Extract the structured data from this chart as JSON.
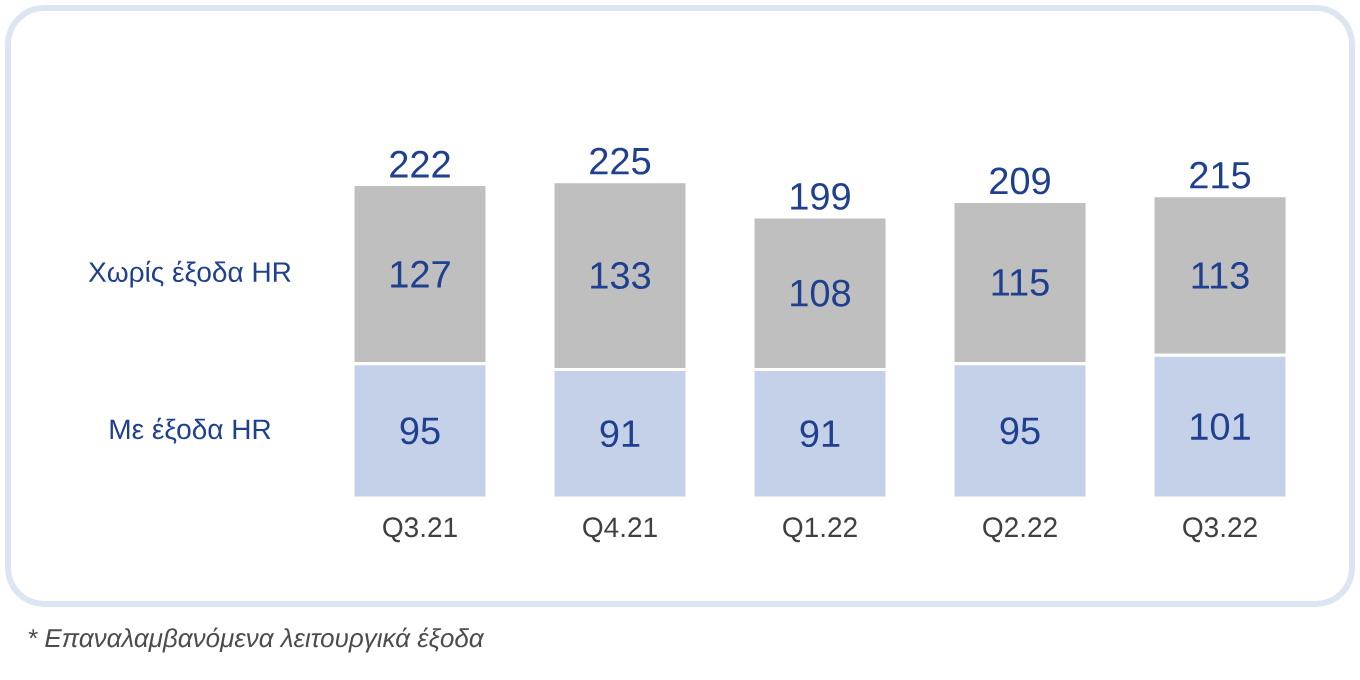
{
  "chart_data": {
    "type": "bar",
    "stacked": true,
    "categories": [
      "Q3.21",
      "Q4.21",
      "Q1.22",
      "Q2.22",
      "Q3.22"
    ],
    "series": [
      {
        "name": "Με έξοδα HR",
        "color": "#c5d1e8",
        "values": [
          95,
          91,
          91,
          95,
          101
        ]
      },
      {
        "name": "Χωρίς έξοδα HR",
        "color": "#bfbfbf",
        "values": [
          127,
          133,
          108,
          115,
          113
        ]
      }
    ],
    "data_labels": true,
    "totals": [
      "222",
      "225",
      "199",
      "209",
      "215"
    ],
    "annotations": [
      "* Επαναλαμβανόμενα λειτουργικά έξοδα"
    ]
  }
}
